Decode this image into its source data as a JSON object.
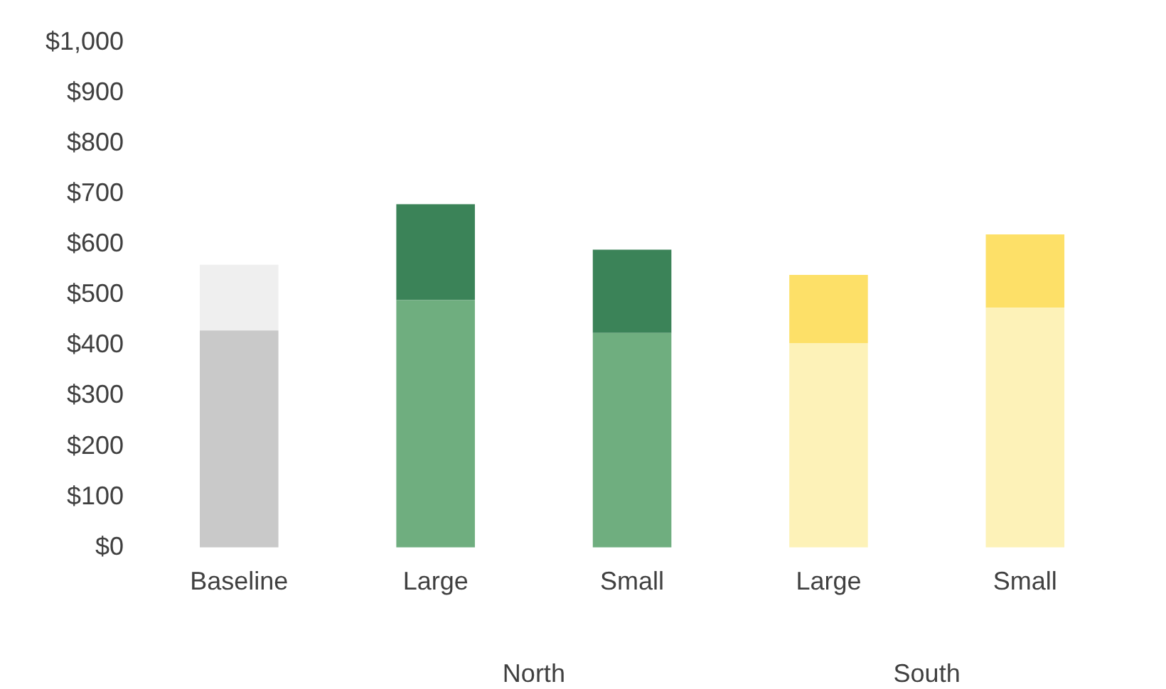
{
  "chart_data": {
    "type": "bar",
    "stacked": true,
    "categories": [
      "Baseline",
      "Large",
      "Small",
      "Large",
      "Small"
    ],
    "series": [
      {
        "colors": [
          "#c9c9c9",
          "#6fae7f",
          "#6fae7f",
          "#fdf2b8",
          "#fdf2b8"
        ],
        "values": [
          430,
          490,
          425,
          405,
          475
        ]
      },
      {
        "colors": [
          "#efefef",
          "#3b8358",
          "#3b8358",
          "#fde068",
          "#fde068"
        ],
        "values": [
          130,
          190,
          165,
          135,
          145
        ]
      }
    ],
    "ylim": [
      0,
      1000
    ],
    "yticks": [
      {
        "value": 0,
        "label": "$0"
      },
      {
        "value": 100,
        "label": "$100"
      },
      {
        "value": 200,
        "label": "$200"
      },
      {
        "value": 300,
        "label": "$300"
      },
      {
        "value": 400,
        "label": "$400"
      },
      {
        "value": 500,
        "label": "$500"
      },
      {
        "value": 600,
        "label": "$600"
      },
      {
        "value": 700,
        "label": "$700"
      },
      {
        "value": 800,
        "label": "$800"
      },
      {
        "value": 900,
        "label": "$900"
      },
      {
        "value": 1000,
        "label": "$1,000"
      }
    ],
    "annotations": [
      "North",
      "South"
    ],
    "grid": false,
    "legend": false
  }
}
